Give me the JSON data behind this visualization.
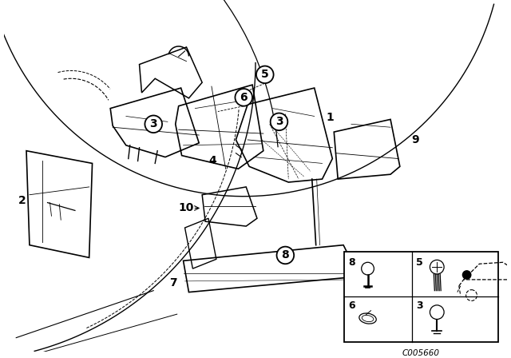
{
  "bg_color": "#ffffff",
  "line_color": "#000000",
  "diagram_code": "C005660",
  "label_font_size": 9,
  "fig_width": 6.4,
  "fig_height": 4.48,
  "dpi": 100
}
